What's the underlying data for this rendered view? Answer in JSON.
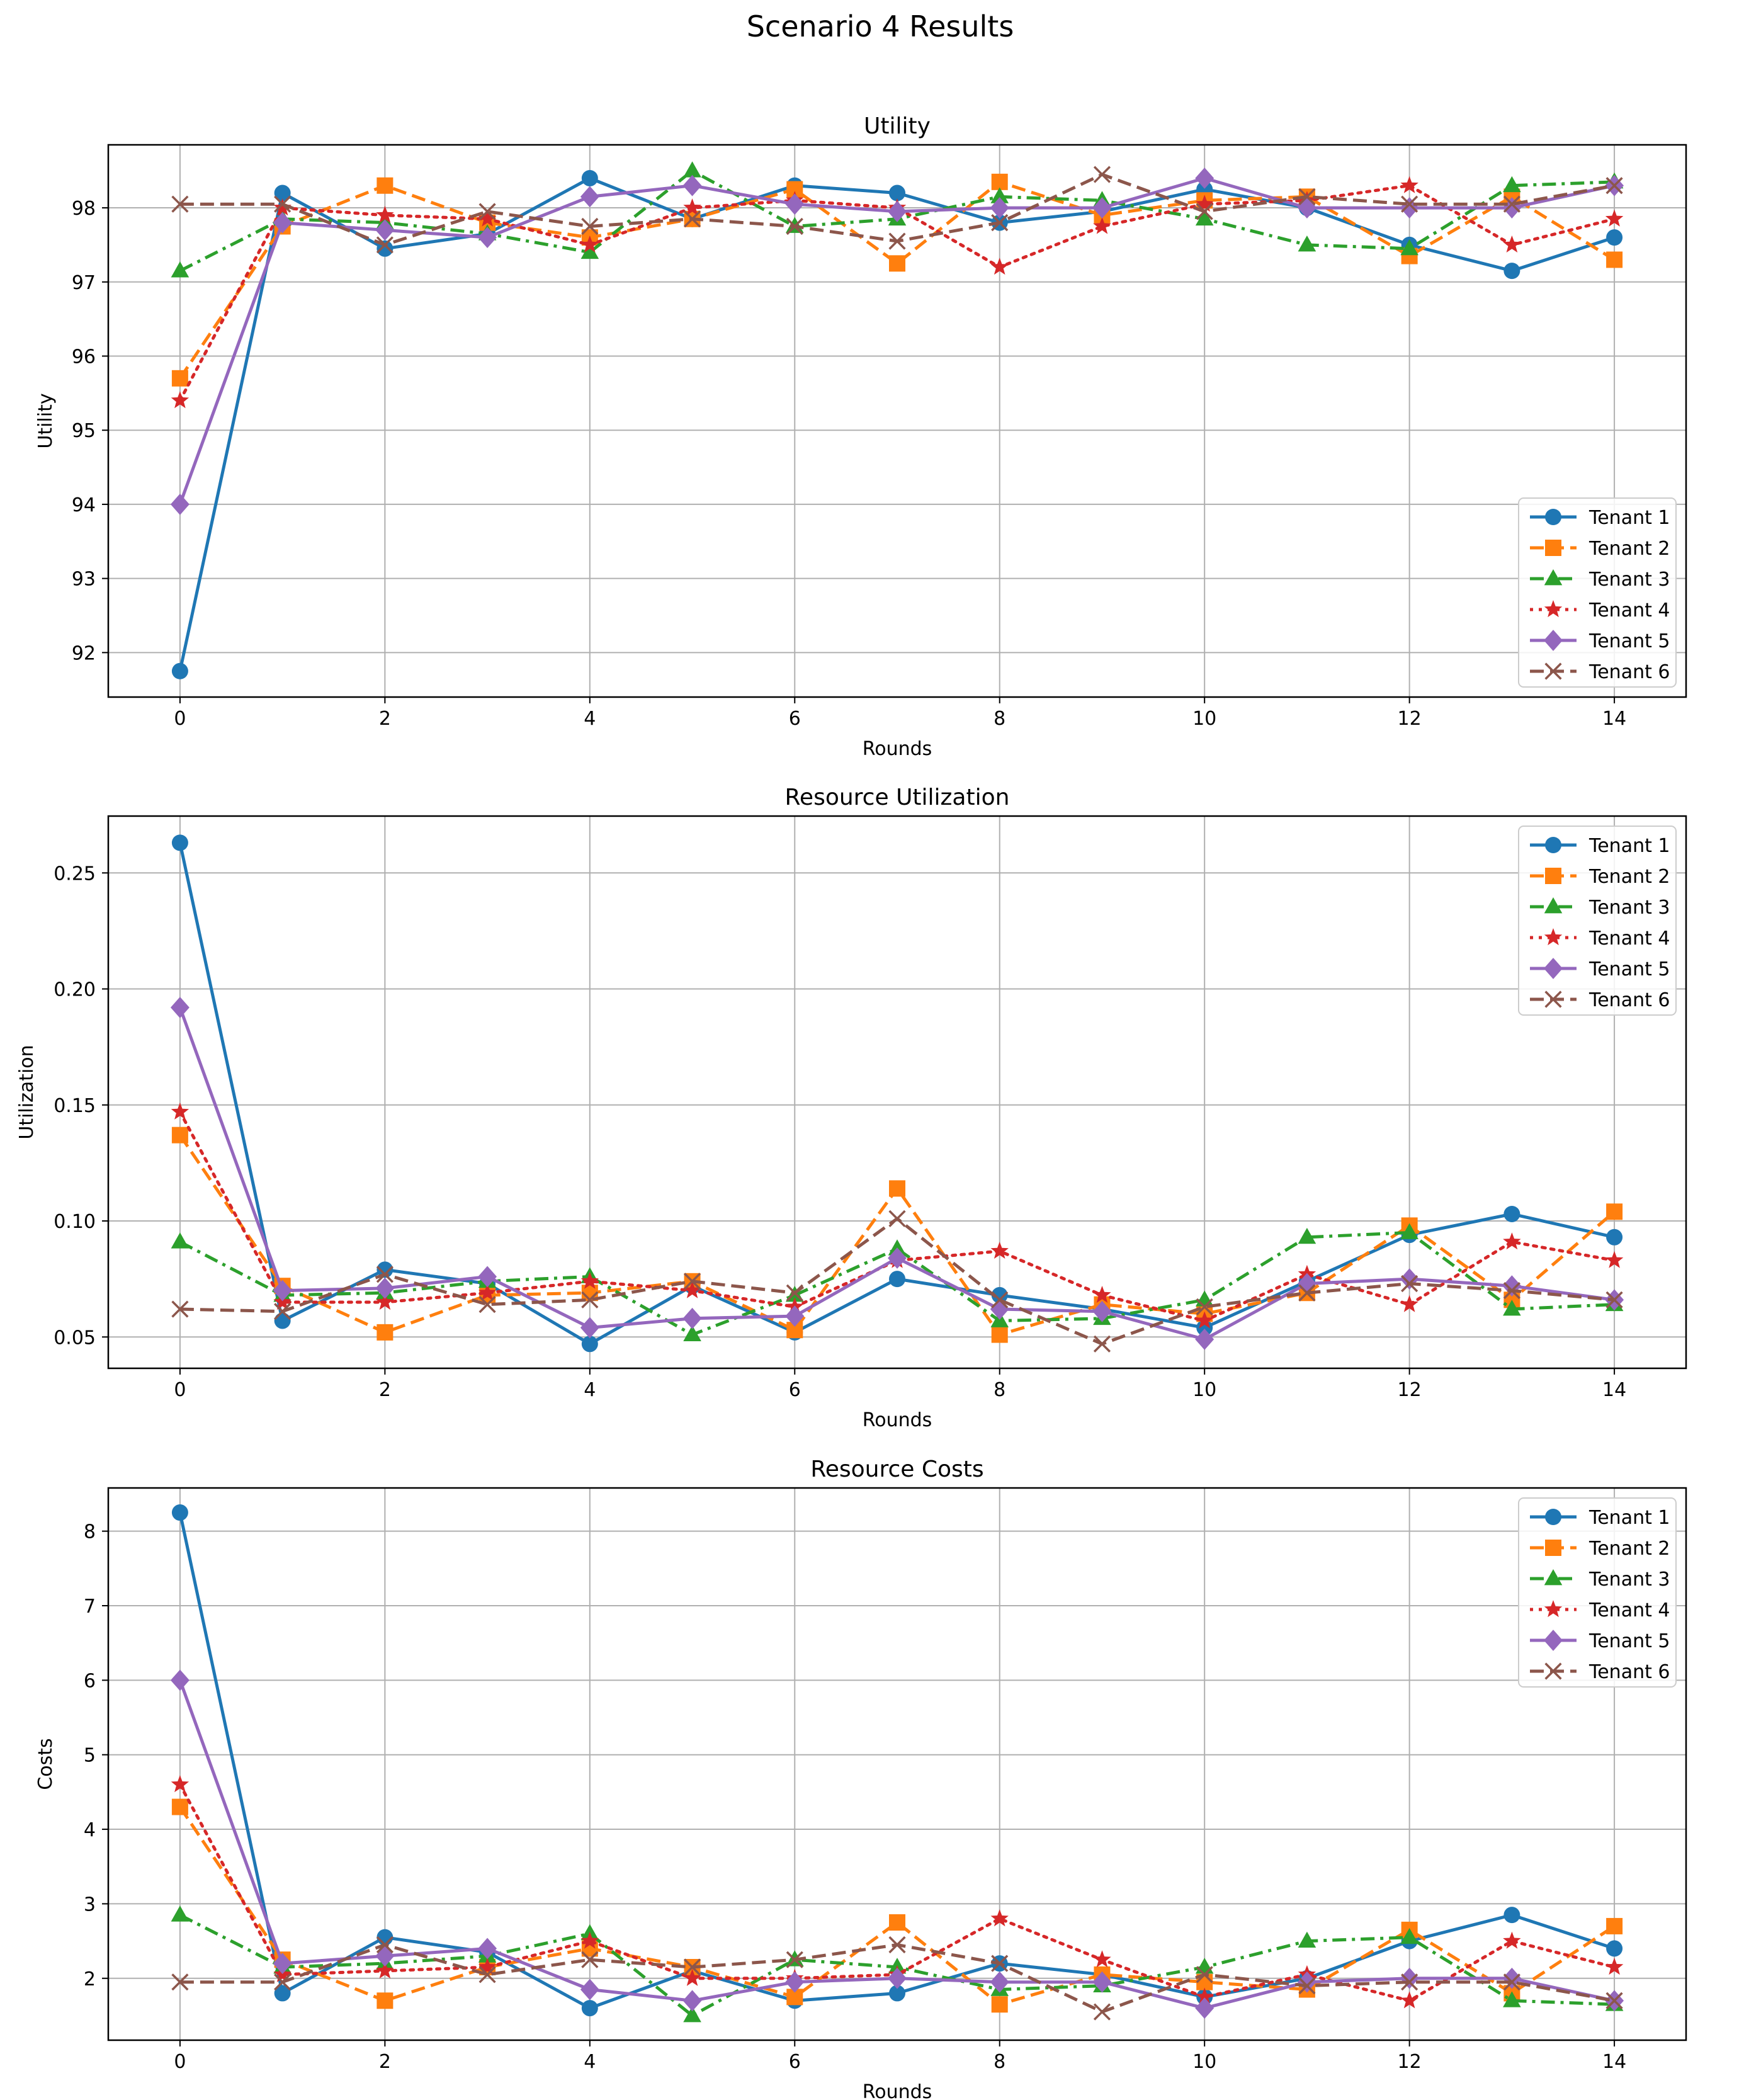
{
  "figure_title": "Scenario 4 Results",
  "series_styles": [
    {
      "name": "Tenant 1",
      "color": "#1f77b4",
      "dash": "solid",
      "marker": "circle"
    },
    {
      "name": "Tenant 2",
      "color": "#ff7f0e",
      "dash": "dashed",
      "marker": "square"
    },
    {
      "name": "Tenant 3",
      "color": "#2ca02c",
      "dash": "dashdot",
      "marker": "triangle"
    },
    {
      "name": "Tenant 4",
      "color": "#d62728",
      "dash": "dotted",
      "marker": "star"
    },
    {
      "name": "Tenant 5",
      "color": "#9467bd",
      "dash": "solid",
      "marker": "diamond"
    },
    {
      "name": "Tenant 6",
      "color": "#8c564b",
      "dash": "dashed",
      "marker": "x"
    }
  ],
  "chart_data": [
    {
      "type": "line",
      "title": "Utility",
      "xlabel": "Rounds",
      "ylabel": "Utility",
      "x": [
        0,
        1,
        2,
        3,
        4,
        5,
        6,
        7,
        8,
        9,
        10,
        11,
        12,
        13,
        14
      ],
      "xlim": [
        -0.7,
        14.7
      ],
      "ylim": [
        91.4,
        98.85
      ],
      "xticks": [
        0,
        2,
        4,
        6,
        8,
        10,
        12,
        14
      ],
      "yticks": [
        92,
        93,
        94,
        95,
        96,
        97,
        98
      ],
      "ytick_decimals": 0,
      "grid": true,
      "legend": "lower-right",
      "series": [
        {
          "name": "Tenant 1",
          "values": [
            91.75,
            98.2,
            97.45,
            97.65,
            98.4,
            97.85,
            98.3,
            98.2,
            97.8,
            97.95,
            98.25,
            98.0,
            97.5,
            97.15,
            97.6
          ]
        },
        {
          "name": "Tenant 2",
          "values": [
            95.7,
            97.75,
            98.3,
            97.8,
            97.6,
            97.85,
            98.25,
            97.25,
            98.35,
            97.9,
            98.1,
            98.15,
            97.35,
            98.15,
            97.3
          ]
        },
        {
          "name": "Tenant 3",
          "values": [
            97.15,
            97.85,
            97.8,
            97.65,
            97.4,
            98.5,
            97.75,
            97.85,
            98.15,
            98.1,
            97.85,
            97.5,
            97.45,
            98.3,
            98.35
          ]
        },
        {
          "name": "Tenant 4",
          "values": [
            95.4,
            98.0,
            97.9,
            97.85,
            97.5,
            98.0,
            98.1,
            98.0,
            97.2,
            97.75,
            98.05,
            98.1,
            98.3,
            97.5,
            97.85
          ]
        },
        {
          "name": "Tenant 5",
          "values": [
            94.0,
            97.8,
            97.7,
            97.6,
            98.15,
            98.3,
            98.05,
            97.95,
            98.0,
            98.0,
            98.4,
            98.0,
            98.0,
            98.0,
            98.3
          ]
        },
        {
          "name": "Tenant 6",
          "values": [
            98.05,
            98.05,
            97.5,
            97.95,
            97.75,
            97.85,
            97.75,
            97.55,
            97.8,
            98.45,
            97.95,
            98.15,
            98.05,
            98.05,
            98.3
          ]
        }
      ]
    },
    {
      "type": "line",
      "title": "Resource Utilization",
      "xlabel": "Rounds",
      "ylabel": "Utilization",
      "x": [
        0,
        1,
        2,
        3,
        4,
        5,
        6,
        7,
        8,
        9,
        10,
        11,
        12,
        13,
        14
      ],
      "xlim": [
        -0.7,
        14.7
      ],
      "ylim": [
        0.0365,
        0.2745
      ],
      "xticks": [
        0,
        2,
        4,
        6,
        8,
        10,
        12,
        14
      ],
      "yticks": [
        0.05,
        0.1,
        0.15,
        0.2,
        0.25
      ],
      "ytick_decimals": 2,
      "grid": true,
      "legend": "upper-right",
      "series": [
        {
          "name": "Tenant 1",
          "values": [
            0.263,
            0.057,
            0.079,
            0.073,
            0.047,
            0.072,
            0.052,
            0.075,
            0.068,
            0.062,
            0.054,
            0.074,
            0.094,
            0.103,
            0.093
          ]
        },
        {
          "name": "Tenant 2",
          "values": [
            0.137,
            0.072,
            0.052,
            0.068,
            0.069,
            0.074,
            0.053,
            0.114,
            0.051,
            0.064,
            0.06,
            0.069,
            0.098,
            0.066,
            0.104
          ]
        },
        {
          "name": "Tenant 3",
          "values": [
            0.091,
            0.068,
            0.069,
            0.074,
            0.076,
            0.051,
            0.068,
            0.088,
            0.057,
            0.058,
            0.066,
            0.093,
            0.095,
            0.062,
            0.064
          ]
        },
        {
          "name": "Tenant 4",
          "values": [
            0.147,
            0.065,
            0.065,
            0.069,
            0.074,
            0.07,
            0.063,
            0.083,
            0.087,
            0.068,
            0.057,
            0.077,
            0.064,
            0.091,
            0.083
          ]
        },
        {
          "name": "Tenant 5",
          "values": [
            0.192,
            0.07,
            0.071,
            0.076,
            0.054,
            0.058,
            0.059,
            0.084,
            0.062,
            0.061,
            0.049,
            0.073,
            0.075,
            0.072,
            0.066
          ]
        },
        {
          "name": "Tenant 6",
          "values": [
            0.062,
            0.061,
            0.077,
            0.064,
            0.066,
            0.074,
            0.069,
            0.101,
            0.066,
            0.047,
            0.063,
            0.069,
            0.073,
            0.07,
            0.066
          ]
        }
      ]
    },
    {
      "type": "line",
      "title": "Resource Costs",
      "xlabel": "Rounds",
      "ylabel": "Costs",
      "x": [
        0,
        1,
        2,
        3,
        4,
        5,
        6,
        7,
        8,
        9,
        10,
        11,
        12,
        13,
        14
      ],
      "xlim": [
        -0.7,
        14.7
      ],
      "ylim": [
        1.17,
        8.58
      ],
      "xticks": [
        0,
        2,
        4,
        6,
        8,
        10,
        12,
        14
      ],
      "yticks": [
        2,
        3,
        4,
        5,
        6,
        7,
        8
      ],
      "ytick_decimals": 0,
      "grid": true,
      "legend": "upper-right",
      "series": [
        {
          "name": "Tenant 1",
          "values": [
            8.25,
            1.8,
            2.55,
            2.35,
            1.6,
            2.1,
            1.7,
            1.8,
            2.2,
            2.05,
            1.75,
            2.0,
            2.5,
            2.85,
            2.4
          ]
        },
        {
          "name": "Tenant 2",
          "values": [
            4.3,
            2.25,
            1.7,
            2.15,
            2.4,
            2.15,
            1.75,
            2.75,
            1.65,
            2.05,
            1.95,
            1.85,
            2.65,
            1.8,
            2.7
          ]
        },
        {
          "name": "Tenant 3",
          "values": [
            2.85,
            2.15,
            2.2,
            2.3,
            2.6,
            1.5,
            2.25,
            2.15,
            1.85,
            1.9,
            2.15,
            2.5,
            2.55,
            1.7,
            1.65
          ]
        },
        {
          "name": "Tenant 4",
          "values": [
            4.6,
            2.05,
            2.1,
            2.15,
            2.5,
            2.0,
            2.0,
            2.05,
            2.8,
            2.25,
            1.75,
            2.05,
            1.7,
            2.5,
            2.15
          ]
        },
        {
          "name": "Tenant 5",
          "values": [
            6.0,
            2.2,
            2.3,
            2.4,
            1.85,
            1.7,
            1.95,
            2.0,
            1.95,
            1.95,
            1.6,
            1.95,
            2.0,
            2.0,
            1.7
          ]
        },
        {
          "name": "Tenant 6",
          "values": [
            1.95,
            1.95,
            2.45,
            2.05,
            2.25,
            2.15,
            2.25,
            2.45,
            2.2,
            1.55,
            2.05,
            1.9,
            1.95,
            1.95,
            1.7
          ]
        }
      ]
    }
  ]
}
